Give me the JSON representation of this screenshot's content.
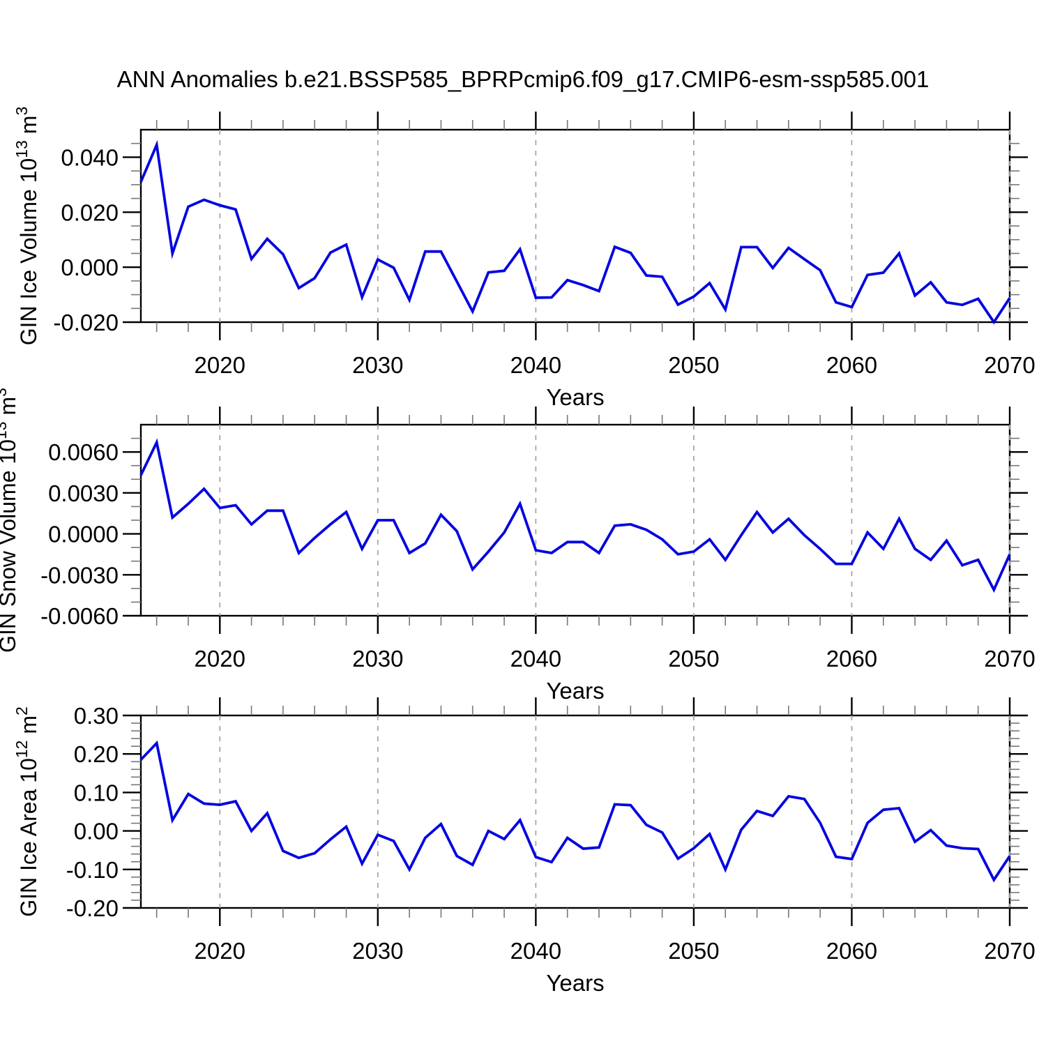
{
  "title": "ANN Anomalies b.e21.BSSP585_BPRPcmip6.f09_g17.CMIP6-esm-ssp585.001",
  "colors": {
    "line": "#0505e0",
    "grid": "#a6a6a6",
    "axis": "#000000",
    "minor_tick": "#777777",
    "background": "#ffffff"
  },
  "chart_data": [
    {
      "type": "line",
      "ylabel_text": "GIN Ice Volume 10^13 m^3",
      "ylabel_parts": [
        {
          "t": "GIN Ice Volume 10"
        },
        {
          "t": "13",
          "sup": true
        },
        {
          "t": " m"
        },
        {
          "t": "3",
          "sup": true
        }
      ],
      "xlabel": "Years",
      "x_start": 2015,
      "x_end": 2070,
      "x_step": 1,
      "ylim": [
        -0.02,
        0.05
      ],
      "yticks": {
        "values": [
          0.04,
          0.02,
          0.0,
          -0.02
        ],
        "labels": [
          "0.040",
          "0.020",
          "0.000",
          "-0.020"
        ],
        "minor_step": 0.005
      },
      "xticks": {
        "values": [
          2020,
          2030,
          2040,
          2050,
          2060,
          2070
        ],
        "labels": [
          "2020",
          "2030",
          "2040",
          "2050",
          "2060",
          "2070"
        ],
        "minor_step": 2
      },
      "grid_x": [
        2020,
        2030,
        2040,
        2050,
        2060,
        2070
      ],
      "values": [
        0.031,
        0.0445,
        0.005,
        0.022,
        0.0245,
        0.0225,
        0.021,
        0.003,
        0.0103,
        0.0047,
        -0.0076,
        -0.004,
        0.0053,
        0.0082,
        -0.0109,
        0.0028,
        -0.0002,
        -0.0119,
        0.0057,
        0.0057,
        -0.0052,
        -0.0161,
        -0.0019,
        -0.0013,
        0.0065,
        -0.0111,
        -0.011,
        -0.0047,
        -0.0065,
        -0.0087,
        0.0074,
        0.0052,
        -0.003,
        -0.0035,
        -0.0136,
        -0.0107,
        -0.0058,
        -0.0154,
        0.0073,
        0.0073,
        -0.0003,
        0.007,
        0.0029,
        -0.0011,
        -0.0128,
        -0.0145,
        -0.0028,
        -0.002,
        0.005,
        -0.0103,
        -0.0055,
        -0.0128,
        -0.0137,
        -0.0115,
        -0.02,
        -0.0112
      ]
    },
    {
      "type": "line",
      "ylabel_text": "GIN Snow Volume 10^13 m^3",
      "ylabel_parts": [
        {
          "t": "GIN Snow Volume 10"
        },
        {
          "t": "13",
          "sup": true
        },
        {
          "t": " m"
        },
        {
          "t": "3",
          "sup": true
        }
      ],
      "xlabel": "Years",
      "x_start": 2015,
      "x_end": 2070,
      "x_step": 1,
      "ylim": [
        -0.006,
        0.008
      ],
      "yticks": {
        "values": [
          0.006,
          0.003,
          0.0,
          -0.003,
          -0.006
        ],
        "labels": [
          "0.0060",
          "0.0030",
          "0.0000",
          "-0.0030",
          "-0.0060"
        ],
        "minor_step": 0.001
      },
      "xticks": {
        "values": [
          2020,
          2030,
          2040,
          2050,
          2060,
          2070
        ],
        "labels": [
          "2020",
          "2030",
          "2040",
          "2050",
          "2060",
          "2070"
        ],
        "minor_step": 2
      },
      "grid_x": [
        2020,
        2030,
        2040,
        2050,
        2060,
        2070
      ],
      "values": [
        0.0043,
        0.0067,
        0.0012,
        0.0022,
        0.0033,
        0.0019,
        0.0021,
        0.0007,
        0.0017,
        0.0017,
        -0.0014,
        -0.0003,
        0.0007,
        0.0016,
        -0.0011,
        0.001,
        0.001,
        -0.0014,
        -0.0007,
        0.0014,
        0.0002,
        -0.0026,
        -0.0013,
        0.0001,
        0.0022,
        -0.0012,
        -0.0014,
        -0.0006,
        -0.0006,
        -0.0014,
        0.0006,
        0.0007,
        0.0003,
        -0.0004,
        -0.0015,
        -0.0013,
        -0.0004,
        -0.0019,
        -0.0001,
        0.0016,
        0.0001,
        0.0011,
        -0.0001,
        -0.0011,
        -0.0022,
        -0.0022,
        0.0001,
        -0.0011,
        0.0011,
        -0.0011,
        -0.0019,
        -0.0005,
        -0.0023,
        -0.0019,
        -0.0041,
        -0.0015
      ]
    },
    {
      "type": "line",
      "ylabel_text": "GIN Ice Area 10^12 m^2",
      "ylabel_parts": [
        {
          "t": "GIN Ice Area 10"
        },
        {
          "t": "12",
          "sup": true
        },
        {
          "t": " m"
        },
        {
          "t": "2",
          "sup": true
        }
      ],
      "xlabel": "Years",
      "x_start": 2015,
      "x_end": 2070,
      "x_step": 1,
      "ylim": [
        -0.2,
        0.3
      ],
      "yticks": {
        "values": [
          0.3,
          0.2,
          0.1,
          0.0,
          -0.1,
          -0.2
        ],
        "labels": [
          "0.30",
          "0.20",
          "0.10",
          "0.00",
          "-0.10",
          "-0.20"
        ],
        "minor_step": 0.02
      },
      "xticks": {
        "values": [
          2020,
          2030,
          2040,
          2050,
          2060,
          2070
        ],
        "labels": [
          "2020",
          "2030",
          "2040",
          "2050",
          "2060",
          "2070"
        ],
        "minor_step": 2
      },
      "grid_x": [
        2020,
        2030,
        2040,
        2050,
        2060,
        2070
      ],
      "values": [
        0.185,
        0.228,
        0.028,
        0.096,
        0.071,
        0.068,
        0.077,
        0.0,
        0.046,
        -0.052,
        -0.07,
        -0.058,
        -0.022,
        0.011,
        -0.085,
        -0.01,
        -0.026,
        -0.1,
        -0.018,
        0.018,
        -0.065,
        -0.088,
        0.0,
        -0.021,
        0.028,
        -0.068,
        -0.081,
        -0.018,
        -0.046,
        -0.043,
        0.069,
        0.067,
        0.016,
        -0.004,
        -0.072,
        -0.045,
        -0.008,
        -0.1,
        0.003,
        0.052,
        0.039,
        0.09,
        0.083,
        0.021,
        -0.067,
        -0.073,
        0.021,
        0.055,
        0.059,
        -0.028,
        0.002,
        -0.038,
        -0.045,
        -0.047,
        -0.127,
        -0.065
      ]
    }
  ]
}
